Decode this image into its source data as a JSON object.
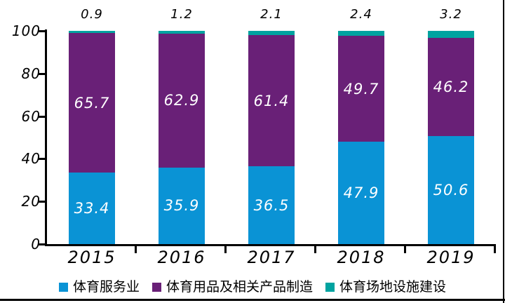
{
  "chart_data": {
    "type": "bar",
    "subtype": "stacked-percent",
    "categories": [
      "2015",
      "2016",
      "2017",
      "2018",
      "2019"
    ],
    "series": [
      {
        "name": "体育服务业",
        "color": "#0A93D5",
        "values": [
          33.4,
          35.9,
          36.5,
          47.9,
          50.6
        ],
        "label_style": "inside-white"
      },
      {
        "name": "体育用品及相关产品制造",
        "color": "#692077",
        "values": [
          65.7,
          62.9,
          61.4,
          49.7,
          46.2
        ],
        "label_style": "inside-white"
      },
      {
        "name": "体育场地设施建设",
        "color": "#00A3A0",
        "values": [
          0.9,
          1.2,
          2.1,
          2.4,
          3.2
        ],
        "label_style": "above-black"
      }
    ],
    "title": "",
    "xlabel": "",
    "ylabel": "",
    "ylim": [
      0,
      100
    ],
    "yticks": [
      0,
      20,
      40,
      60,
      80,
      100
    ],
    "grid": false,
    "legend_position": "bottom",
    "colors": {
      "axis": "#000000",
      "background": "#ffffff",
      "border": "#000000"
    }
  }
}
